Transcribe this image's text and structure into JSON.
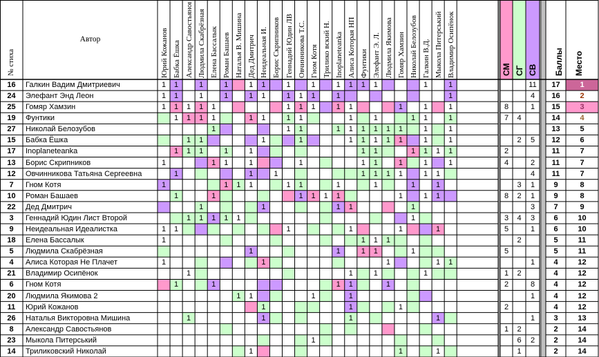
{
  "header": {
    "num_label": "№ стиха",
    "author_label": "Автор",
    "judges": [
      "Юрий Кожанов",
      "Бабка Ёшка",
      "Александр Савостьянов",
      "Людмила Скабрёзная",
      "Елена Бассалык",
      "Роман Башаев",
      "Наталья В. Мишина",
      "Дед Дмитрич",
      "Неидеальная И.",
      "Борис Скрипников",
      "Геннадий Юдин ЛВ",
      "Овчинникова Т.С.",
      "Гном Котя",
      "Трилико вский Н.",
      "Inoplaneteanka",
      "Алиса Которая НП",
      "Фунтики",
      "Элефант Э. Л.",
      "Людмила Якимова",
      "Гомяр Хамзин",
      "Николай Белозубов",
      "Галкин В.Д.",
      "Мыкола Питерський",
      "Владимир Осипёнок"
    ],
    "sm": "СМ",
    "sg": "СГ",
    "sv": "СВ",
    "score": "Баллы",
    "place": "Место"
  },
  "colors": {
    "green": "#ccffcc",
    "pink": "#ff99cc",
    "purple": "#cc99ff",
    "sm": "#ff99cc",
    "sg": "#ccffcc",
    "sv": "#cc99ff",
    "place_gold": "#cc6699",
    "place_silver": "#ff99cc",
    "place_bronze": "#ff99cc"
  },
  "rows": [
    {
      "num": "16",
      "author": "Галкин Вадим Дмитриевич",
      "v": [
        "1",
        "1",
        "",
        "1",
        "",
        "1",
        "",
        "1",
        "1",
        "",
        "1",
        "",
        "1",
        "",
        "1",
        "1",
        "1",
        "1",
        "",
        "",
        "",
        "1",
        "",
        "1"
      ],
      "bg": "gpgpgppgpgpgpgpgpgp g   ",
      "sm": "",
      "sg": "",
      "sv": "11",
      "score": "17",
      "place": "1"
    },
    {
      "num": "24",
      "author": "Элефант Энд Леон",
      "v": [
        "1",
        "1",
        "",
        "1",
        "",
        "1",
        "",
        "1",
        "1",
        "",
        "1",
        "1",
        "1",
        "",
        "1",
        "",
        "",
        "",
        "",
        "",
        "",
        "",
        "",
        "1"
      ],
      "bg": "",
      "sm": "",
      "sg": "",
      "sv": "4",
      "score": "16",
      "place": "2"
    },
    {
      "num": "25",
      "author": "Гомяр Хамзин",
      "v": [
        "1",
        "1",
        "1",
        "1",
        "1",
        "",
        "",
        "",
        "",
        "",
        "1",
        "1",
        "1",
        "",
        "1",
        "1",
        "",
        "",
        "",
        "1",
        "",
        "1",
        "",
        "1"
      ],
      "bg": "",
      "sm": "8",
      "sg": "",
      "sv": "1",
      "score": "15",
      "place": "3"
    },
    {
      "num": "19",
      "author": "Фунтики",
      "v": [
        "",
        "1",
        "1",
        "1",
        "1",
        "",
        "",
        "1",
        "1",
        "",
        "1",
        "1",
        "",
        "",
        "",
        "1",
        "",
        "1",
        "",
        "",
        "1",
        "1",
        "",
        "1"
      ],
      "bg": "",
      "sm": "7",
      "sg": "4",
      "sv": "",
      "score": "14",
      "place": "4"
    },
    {
      "num": "27",
      "author": "Николай Белозубов",
      "v": [
        "",
        "",
        "",
        "",
        "1",
        "",
        "",
        "",
        "",
        "",
        "1",
        "1",
        "",
        "",
        "1",
        "1",
        "1",
        "1",
        "1",
        "1",
        "",
        "1",
        "",
        "1"
      ],
      "bg": "",
      "sm": "",
      "sg": "",
      "sv": "",
      "score": "13",
      "place": "5"
    },
    {
      "num": "15",
      "author": "Бабка Ёшка",
      "v": [
        "",
        "",
        "1",
        "1",
        "",
        "",
        "",
        "",
        "1",
        "",
        "",
        "1",
        "",
        "",
        "",
        "1",
        "1",
        "1",
        "1",
        "1",
        "",
        "1",
        "",
        "1"
      ],
      "bg": "",
      "sm": "",
      "sg": "2",
      "sv": "5",
      "score": "12",
      "place": "6"
    },
    {
      "num": "17",
      "author": "Inoplaneteanka",
      "v": [
        "",
        "1",
        "1",
        "1",
        "",
        "1",
        "",
        "1",
        "",
        "",
        "",
        "",
        "",
        "",
        "",
        "",
        "1",
        "1",
        "",
        "",
        "1",
        "1",
        "1",
        "1"
      ],
      "bg": "",
      "sm": "2",
      "sg": "",
      "sv": "",
      "score": "11",
      "place": "7"
    },
    {
      "num": "13",
      "author": "Борис Скрипников",
      "v": [
        "1",
        "",
        "",
        "",
        "1",
        "1",
        "",
        "1",
        "",
        "",
        "",
        "1",
        "",
        "",
        "",
        "",
        "1",
        "1",
        "",
        "1",
        "",
        "1",
        "",
        "1"
      ],
      "bg": "",
      "sm": "4",
      "sg": "",
      "sv": "2",
      "score": "11",
      "place": "7"
    },
    {
      "num": "12",
      "author": "Овчинникова Татьяна Сергеевна",
      "v": [
        "",
        "1",
        "",
        "",
        "",
        "",
        "",
        "1",
        "",
        "1",
        "",
        "",
        "",
        "",
        "",
        "",
        "1",
        "1",
        "1",
        "1",
        "",
        "1",
        "1",
        ""
      ],
      "bg": "",
      "sm": "",
      "sg": "",
      "sv": "4",
      "score": "11",
      "place": "7"
    },
    {
      "num": "7",
      "author": "Гном Котя",
      "v": [
        "1",
        "",
        "",
        "",
        "",
        "1",
        "1",
        "1",
        "",
        "",
        "1",
        "1",
        "",
        "",
        "1",
        "",
        "",
        "1",
        "",
        "",
        "1",
        "",
        "1",
        ""
      ],
      "bg": "",
      "sm": "",
      "sg": "3",
      "sv": "1",
      "score": "9",
      "place": "8"
    },
    {
      "num": "10",
      "author": "Роман Башаев",
      "v": [
        "",
        "1",
        "",
        "",
        "1",
        "",
        "",
        "",
        "",
        "",
        "",
        "1",
        "1",
        "1",
        "1",
        "",
        "",
        "",
        "",
        "1",
        "",
        "1",
        "1",
        ""
      ],
      "bg": "",
      "sm": "8",
      "sg": "2",
      "sv": "1",
      "score": "9",
      "place": "8"
    },
    {
      "num": "22",
      "author": "Дед Дмитрич",
      "v": [
        "",
        "",
        "",
        "1",
        "",
        "",
        "",
        "",
        "1",
        "",
        "",
        "",
        "",
        "",
        "1",
        "1",
        "",
        "",
        "",
        "",
        "1",
        "",
        "",
        ""
      ],
      "bg": "",
      "sm": "",
      "sg": "",
      "sv": "3",
      "score": "7",
      "place": "9"
    },
    {
      "num": "3",
      "author": "Геннадий Юдин Лист Второй",
      "v": [
        "",
        "",
        "1",
        "1",
        "1",
        "1",
        "1",
        "",
        "",
        "",
        "",
        "",
        "",
        "",
        "",
        "",
        "",
        "",
        "",
        "",
        "1",
        "",
        "",
        ""
      ],
      "bg": "",
      "sm": "3",
      "sg": "4",
      "sv": "3",
      "score": "6",
      "place": "10"
    },
    {
      "num": "9",
      "author": "Неидеальная Идеалистка",
      "v": [
        "1",
        "1",
        "",
        "",
        "",
        "",
        "",
        "",
        "",
        "",
        "1",
        "",
        "",
        "",
        "",
        "1",
        "",
        "",
        "",
        "1",
        "",
        "",
        "1",
        ""
      ],
      "bg": "",
      "sm": "5",
      "sg": "",
      "sv": "1",
      "score": "6",
      "place": "10"
    },
    {
      "num": "18",
      "author": "Елена Бассалык",
      "v": [
        "1",
        "",
        "",
        "",
        "",
        "",
        "",
        "",
        "",
        "",
        "",
        "",
        "",
        "",
        "",
        "",
        "1",
        "1",
        "1",
        "",
        "",
        "",
        "",
        ""
      ],
      "bg": "",
      "sm": "",
      "sg": "2",
      "sv": "",
      "score": "5",
      "place": "11"
    },
    {
      "num": "5",
      "author": "Людмила Скабрёзная",
      "v": [
        "",
        "",
        "",
        "",
        "",
        "",
        "",
        "1",
        "",
        "",
        "",
        "",
        "",
        "",
        "1",
        "",
        "1",
        "1",
        "",
        "",
        "1",
        "",
        "",
        ""
      ],
      "bg": "",
      "sm": "5",
      "sg": "",
      "sv": "",
      "score": "5",
      "place": "11"
    },
    {
      "num": "4",
      "author": "Алиса Которая Не Плачет",
      "v": [
        "1",
        "",
        "",
        "",
        "",
        "",
        "",
        "",
        "1",
        "",
        "",
        "",
        "",
        "",
        "",
        "",
        "",
        "",
        "1",
        "",
        "",
        "",
        "1",
        "1"
      ],
      "bg": "",
      "sm": "",
      "sg": "",
      "sv": "1",
      "score": "4",
      "place": "12"
    },
    {
      "num": "21",
      "author": "Владимир Осипёнок",
      "v": [
        "",
        "",
        "1",
        "",
        "",
        "",
        "",
        "",
        "",
        "",
        "",
        "",
        "",
        "",
        "",
        "1",
        "",
        "1",
        "",
        "",
        "",
        "1",
        "",
        ""
      ],
      "bg": "",
      "sm": "1",
      "sg": "2",
      "sv": "",
      "score": "4",
      "place": "12"
    },
    {
      "num": "6",
      "author": "Гном Котя",
      "v": [
        "",
        "1",
        "",
        "",
        "1",
        "",
        "",
        "",
        "",
        "",
        "",
        "",
        "",
        "",
        "1",
        "1",
        "",
        "",
        "1",
        "",
        "",
        "",
        "",
        ""
      ],
      "bg": "",
      "sm": "2",
      "sg": "",
      "sv": "8",
      "score": "4",
      "place": "12"
    },
    {
      "num": "20",
      "author": "Людмила Якимова 2",
      "v": [
        "",
        "",
        "",
        "",
        "",
        "",
        "1",
        "1",
        "",
        "",
        "",
        "",
        "1",
        "",
        "",
        "1",
        "",
        "",
        "",
        "",
        "",
        "",
        "",
        ""
      ],
      "bg": "",
      "sm": "",
      "sg": "",
      "sv": "1",
      "score": "4",
      "place": "12"
    },
    {
      "num": "11",
      "author": "Юрий Кожанов",
      "v": [
        "",
        "",
        "",
        "",
        "",
        "",
        "",
        "",
        "1",
        "",
        "",
        "",
        "",
        "",
        "",
        "1",
        "",
        "",
        "",
        "1",
        "",
        "",
        "",
        ""
      ],
      "bg": "",
      "sm": "2",
      "sg": "",
      "sv": "",
      "score": "4",
      "place": "12"
    },
    {
      "num": "26",
      "author": "Наталья Викторовна Мишина",
      "v": [
        "",
        "",
        "1",
        "",
        "",
        "",
        "",
        "",
        "1",
        "",
        "",
        "",
        "",
        "",
        "",
        "1",
        "",
        "",
        "",
        "",
        "",
        "",
        "1",
        ""
      ],
      "bg": "",
      "sm": "",
      "sg": "",
      "sv": "1",
      "score": "3",
      "place": "13"
    },
    {
      "num": "8",
      "author": "Александр Савостьянов",
      "v": [
        "",
        "",
        "",
        "",
        "",
        "",
        "",
        "",
        "",
        "",
        "",
        "",
        "",
        "",
        "",
        "",
        "",
        "",
        "",
        "",
        "",
        "",
        "",
        ""
      ],
      "bg": "",
      "sm": "1",
      "sg": "2",
      "sv": "",
      "score": "2",
      "place": "14"
    },
    {
      "num": "23",
      "author": "Мыкола Питерський",
      "v": [
        "",
        "",
        "",
        "",
        "",
        "",
        "",
        "",
        "",
        "",
        "",
        "",
        "1",
        "",
        "",
        "",
        "",
        "",
        "",
        "",
        "",
        "",
        "",
        ""
      ],
      "bg": "",
      "sm": "",
      "sg": "6",
      "sv": "2",
      "score": "2",
      "place": "14"
    },
    {
      "num": "14",
      "author": "Триликовский Николай",
      "v": [
        "",
        "",
        "",
        "",
        "",
        "",
        "",
        "1",
        "",
        "",
        "",
        "",
        "",
        "",
        "",
        "",
        "",
        "",
        "",
        "1",
        "",
        "",
        "1",
        ""
      ],
      "bg": "",
      "sm": "",
      "sg": "1",
      "sv": "",
      "score": "2",
      "place": "14"
    }
  ]
}
